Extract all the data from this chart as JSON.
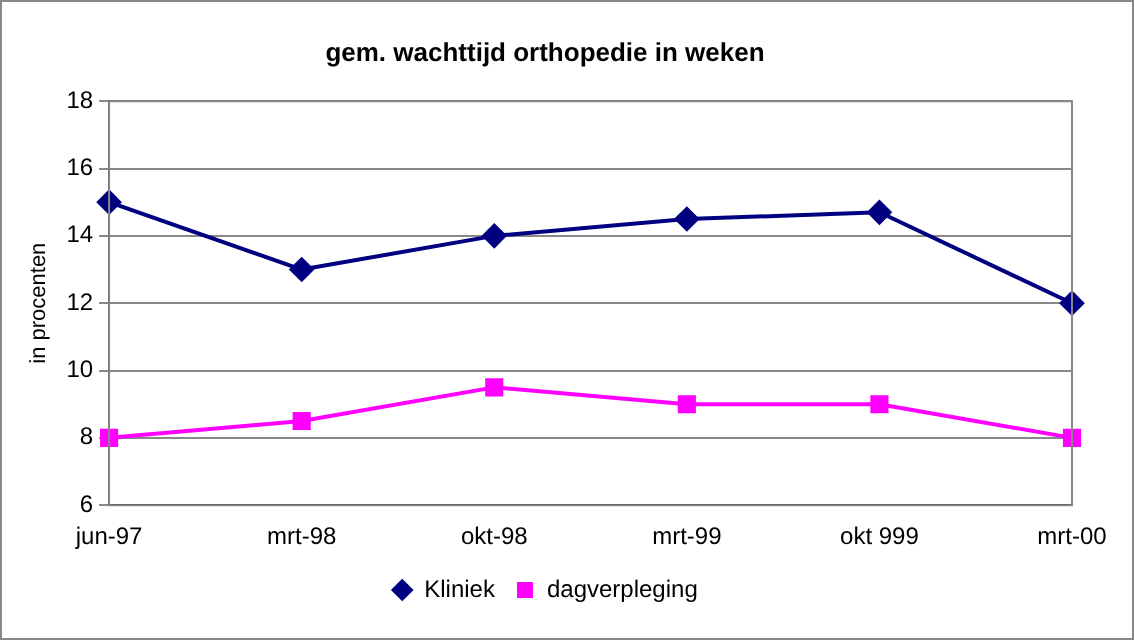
{
  "chart_data": {
    "type": "line",
    "title": "gem. wachttijd orthopedie in weken",
    "ylabel": "in procenten",
    "categories": [
      "jun-97",
      "mrt-98",
      "okt-98",
      "mrt-99",
      "okt 999",
      "mrt-00"
    ],
    "series": [
      {
        "name": "Kliniek",
        "color": "#000080",
        "marker": "diamond",
        "values": [
          15,
          13,
          14,
          14.5,
          14.7,
          12
        ]
      },
      {
        "name": "dagverpleging",
        "color": "#ff00ff",
        "marker": "square",
        "values": [
          8,
          8.5,
          9.5,
          9,
          9,
          8
        ]
      }
    ],
    "ylim": [
      6,
      18
    ],
    "yticks": [
      6,
      8,
      10,
      12,
      14,
      16,
      18
    ],
    "grid": "y",
    "legend": "bottom",
    "line_style": "solid"
  }
}
